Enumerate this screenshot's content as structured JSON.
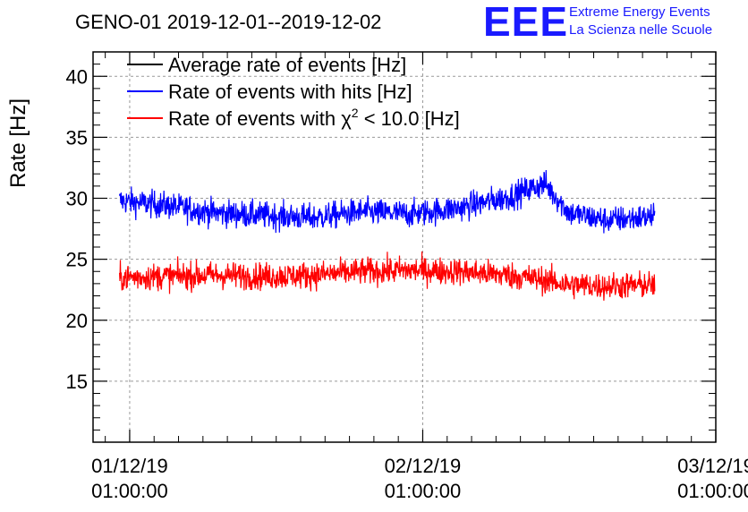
{
  "chart_data": {
    "type": "line",
    "title": "GENO-01 2019-12-01--2019-12-02",
    "ylabel": "Rate [Hz]",
    "xlabel": "",
    "ylim": [
      10,
      42
    ],
    "xlim": [
      "2019-11-30 22:00",
      "2019-12-03 01:00"
    ],
    "yticks": [
      15,
      20,
      25,
      30,
      35,
      40
    ],
    "xticks": [
      {
        "date": "01/12/19",
        "time": "01:00:00",
        "x": "2019-12-01 01:00"
      },
      {
        "date": "02/12/19",
        "time": "01:00:00",
        "x": "2019-12-02 01:00"
      },
      {
        "date": "03/12/19",
        "time": "01:00:00",
        "x": "2019-12-03 01:00"
      }
    ],
    "grid": true,
    "legend_position": "top-left",
    "legend": [
      {
        "label": "Average rate of events [Hz]",
        "color": "#000000"
      },
      {
        "label": "Rate of events with hits [Hz]",
        "color": "#0000ff"
      },
      {
        "label_prefix": "Rate of events with ",
        "label_symbol": "χ",
        "label_sup": "2",
        "label_suffix": " < 10.0 [Hz]",
        "color": "#ff0000"
      }
    ],
    "series": [
      {
        "name": "Rate of events with hits [Hz]",
        "color": "#0000ff",
        "x_start": "2019-12-01 00:10",
        "x_end": "2019-12-02 20:00",
        "x": [
          "2019-12-01 00:10",
          "2019-12-01 04:00",
          "2019-12-01 08:00",
          "2019-12-01 12:00",
          "2019-12-01 16:00",
          "2019-12-01 20:00",
          "2019-12-02 00:00",
          "2019-12-02 04:00",
          "2019-12-02 08:00",
          "2019-12-02 11:00",
          "2019-12-02 13:00",
          "2019-12-02 16:00",
          "2019-12-02 20:00"
        ],
        "y": [
          29.8,
          29.4,
          28.8,
          28.6,
          28.4,
          28.9,
          28.7,
          29.2,
          30.1,
          31.2,
          28.8,
          28.2,
          28.5
        ]
      },
      {
        "name": "Rate of events with χ2 < 10.0 [Hz]",
        "color": "#ff0000",
        "x_start": "2019-12-01 00:10",
        "x_end": "2019-12-02 20:00",
        "x": [
          "2019-12-01 00:10",
          "2019-12-01 04:00",
          "2019-12-01 08:00",
          "2019-12-01 12:00",
          "2019-12-01 16:00",
          "2019-12-01 20:00",
          "2019-12-02 00:00",
          "2019-12-02 04:00",
          "2019-12-02 08:00",
          "2019-12-02 11:00",
          "2019-12-02 13:00",
          "2019-12-02 16:00",
          "2019-12-02 20:00"
        ],
        "y": [
          23.5,
          23.6,
          23.7,
          23.6,
          23.7,
          24.0,
          24.1,
          24.0,
          23.7,
          23.3,
          22.9,
          22.8,
          22.9
        ]
      }
    ]
  },
  "logo": {
    "big": "EEE",
    "line1": "Extreme Energy Events",
    "line2": "La Scienza nelle Scuole"
  }
}
